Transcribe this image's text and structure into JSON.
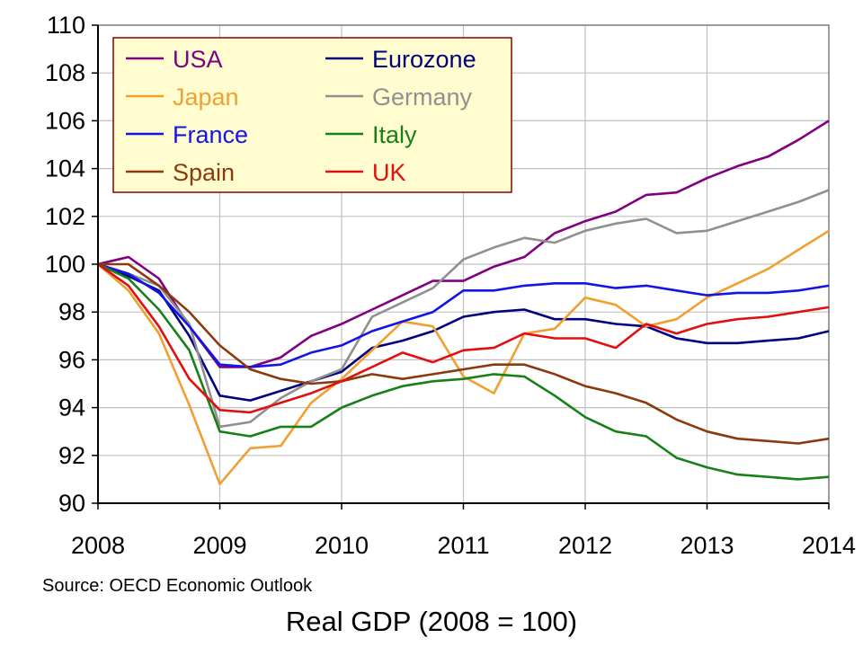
{
  "source_note": "Source: OECD Economic Outlook",
  "caption": "Real GDP (2008 = 100)",
  "chart_data": {
    "type": "line",
    "title": "",
    "xlabel": "",
    "ylabel": "",
    "xlim": [
      2008,
      2014
    ],
    "ylim": [
      90,
      110
    ],
    "x_ticks": [
      2008,
      2009,
      2010,
      2011,
      2012,
      2013,
      2014
    ],
    "y_ticks": [
      90,
      92,
      94,
      96,
      98,
      100,
      102,
      104,
      106,
      108,
      110
    ],
    "grid": true,
    "legend_placement": "top-left",
    "plot_background": "#ffffff",
    "grid_color": "#c0c0c0",
    "legend_background": "#fffdd0",
    "legend_border": "#8b0000",
    "x": [
      2008.0,
      2008.25,
      2008.5,
      2008.75,
      2009.0,
      2009.25,
      2009.5,
      2009.75,
      2010.0,
      2010.25,
      2010.5,
      2010.75,
      2011.0,
      2011.25,
      2011.5,
      2011.75,
      2012.0,
      2012.25,
      2012.5,
      2012.75,
      2013.0,
      2013.25,
      2013.5,
      2013.75,
      2014.0
    ],
    "series": [
      {
        "name": "USA",
        "color": "#800080",
        "values": [
          100.0,
          100.3,
          99.4,
          97.4,
          95.7,
          95.7,
          96.1,
          97.0,
          97.5,
          98.1,
          98.7,
          99.3,
          99.3,
          99.9,
          100.3,
          101.3,
          101.8,
          102.2,
          102.9,
          103.0,
          103.6,
          104.1,
          104.5,
          105.2,
          106.0
        ]
      },
      {
        "name": "Eurozone",
        "color": "#000080",
        "values": [
          100.0,
          99.5,
          98.9,
          97.0,
          94.5,
          94.3,
          94.7,
          95.1,
          95.5,
          96.5,
          96.8,
          97.2,
          97.8,
          98.0,
          98.1,
          97.7,
          97.7,
          97.5,
          97.4,
          96.9,
          96.7,
          96.7,
          96.8,
          96.9,
          97.2
        ]
      },
      {
        "name": "Japan",
        "color": "#f0a030",
        "values": [
          100.0,
          98.9,
          97.1,
          94.1,
          90.8,
          92.3,
          92.4,
          94.2,
          95.2,
          96.4,
          97.6,
          97.4,
          95.3,
          94.6,
          97.1,
          97.3,
          98.6,
          98.3,
          97.4,
          97.7,
          98.6,
          99.2,
          99.8,
          100.6,
          101.4
        ]
      },
      {
        "name": "Germany",
        "color": "#909090",
        "values": [
          100.0,
          99.6,
          99.1,
          97.5,
          93.2,
          93.4,
          94.4,
          95.1,
          95.6,
          97.8,
          98.4,
          99.0,
          100.2,
          100.7,
          101.1,
          100.9,
          101.4,
          101.7,
          101.9,
          101.3,
          101.4,
          101.8,
          102.2,
          102.6,
          103.1
        ]
      },
      {
        "name": "France",
        "color": "#1414e6",
        "values": [
          100.0,
          99.6,
          98.8,
          97.4,
          95.8,
          95.7,
          95.8,
          96.3,
          96.6,
          97.2,
          97.6,
          98.0,
          98.9,
          98.9,
          99.1,
          99.2,
          99.2,
          99.0,
          99.1,
          98.9,
          98.7,
          98.8,
          98.8,
          98.9,
          99.1
        ]
      },
      {
        "name": "Italy",
        "color": "#188018",
        "values": [
          100.0,
          99.4,
          98.1,
          96.4,
          93.0,
          92.8,
          93.2,
          93.2,
          94.0,
          94.5,
          94.9,
          95.1,
          95.2,
          95.4,
          95.3,
          94.5,
          93.6,
          93.0,
          92.8,
          91.9,
          91.5,
          91.2,
          91.1,
          91.0,
          91.1
        ]
      },
      {
        "name": "Spain",
        "color": "#8b3a0c",
        "values": [
          100.0,
          100.0,
          99.1,
          98.0,
          96.6,
          95.6,
          95.2,
          95.0,
          95.1,
          95.4,
          95.2,
          95.4,
          95.6,
          95.8,
          95.8,
          95.4,
          94.9,
          94.6,
          94.2,
          93.5,
          93.0,
          92.7,
          92.6,
          92.5,
          92.7
        ]
      },
      {
        "name": "UK",
        "color": "#e01010",
        "values": [
          100.0,
          99.1,
          97.4,
          95.2,
          93.9,
          93.8,
          94.2,
          94.6,
          95.1,
          95.7,
          96.3,
          95.9,
          96.4,
          96.5,
          97.1,
          96.9,
          96.9,
          96.5,
          97.5,
          97.1,
          97.5,
          97.7,
          97.8,
          98.0,
          98.2
        ]
      }
    ]
  }
}
